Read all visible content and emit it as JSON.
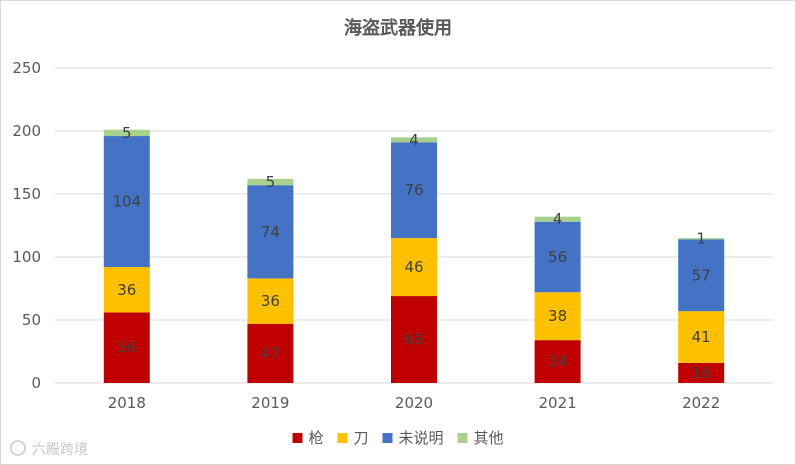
{
  "chart_data": {
    "type": "bar",
    "stacked": true,
    "title": "海盗武器使用",
    "categories": [
      "2018",
      "2019",
      "2020",
      "2021",
      "2022"
    ],
    "series": [
      {
        "name": "枪",
        "color": "#c00000",
        "values": [
          56,
          47,
          69,
          34,
          16
        ]
      },
      {
        "name": "刀",
        "color": "#ffc000",
        "values": [
          36,
          36,
          46,
          38,
          41
        ]
      },
      {
        "name": "未说明",
        "color": "#4472c4",
        "values": [
          104,
          74,
          76,
          56,
          57
        ]
      },
      {
        "name": "其他",
        "color": "#a9d18e",
        "values": [
          5,
          5,
          4,
          4,
          1
        ]
      }
    ],
    "ylim": [
      0,
      250
    ],
    "yticks": [
      0,
      50,
      100,
      150,
      200,
      250
    ],
    "grid": true,
    "legend": "bottom",
    "data_labels": true
  },
  "watermark": {
    "text": "六殿跨境"
  }
}
